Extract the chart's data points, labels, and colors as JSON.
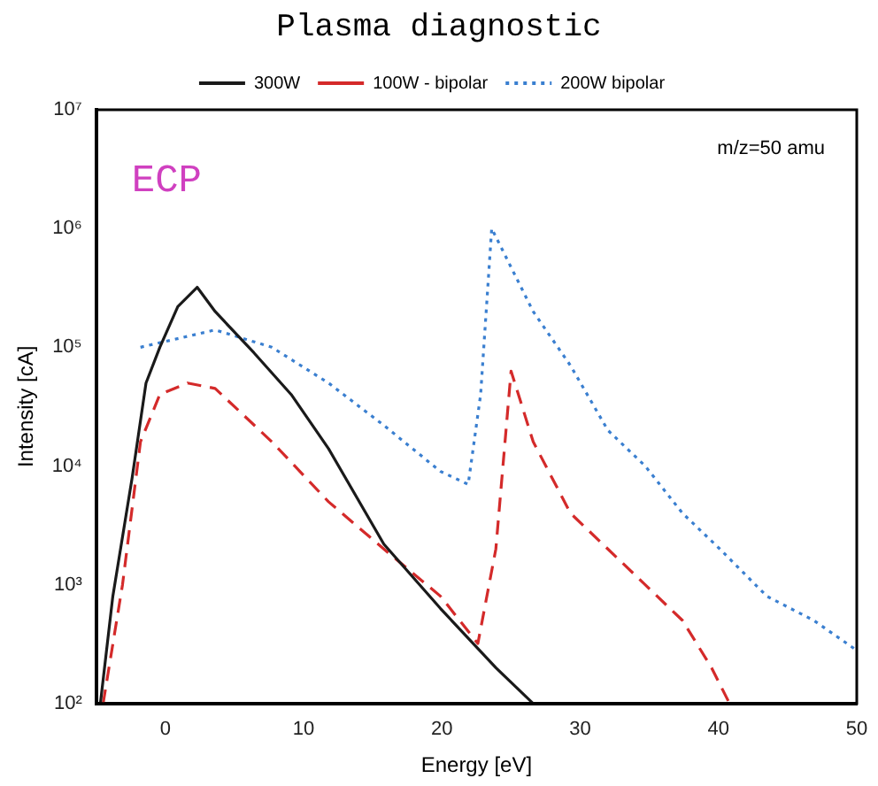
{
  "chart_data": {
    "type": "line",
    "title": "Plasma diagnostic",
    "xlabel": "Energy [eV]",
    "ylabel": "Intensity [cA]",
    "annotations": [
      "ECP",
      "m/z=50 amu"
    ],
    "xlim": [
      -5,
      50
    ],
    "xticks": [
      0,
      10,
      20,
      30,
      40,
      50
    ],
    "ylim": [
      100,
      10000000
    ],
    "yticks": [
      {
        "value": 100,
        "label": "10²"
      },
      {
        "value": 1000,
        "label": "10³"
      },
      {
        "value": 10000,
        "label": "10⁴"
      },
      {
        "value": 100000,
        "label": "10⁵"
      },
      {
        "value": 1000000,
        "label": "10⁶"
      },
      {
        "value": 10000000,
        "label": "10⁷"
      }
    ],
    "log": "y",
    "grid": false,
    "legend": "top",
    "marker": "none",
    "series": [
      {
        "name": "300W",
        "color": "#1a1a1a",
        "line_style": "solid",
        "x": [
          -4.7,
          -3.8,
          -2.4,
          -1.4,
          -0.4,
          0.9,
          2.3,
          3.6,
          6.4,
          9.1,
          11.8,
          15.8,
          19.9,
          23.9,
          26.6
        ],
        "values": [
          100,
          800,
          8000,
          50000,
          100000,
          220000,
          320000,
          200000,
          90000,
          40000,
          14000,
          2200,
          630,
          200,
          100
        ]
      },
      {
        "name": "100W - bipolar",
        "color": "#d42a2a",
        "line_style": "dashed",
        "x": [
          -4.5,
          -3.1,
          -1.8,
          -0.4,
          1.6,
          3.6,
          7.7,
          11.8,
          15.8,
          19.9,
          22.6,
          23.9,
          25,
          26.6,
          29.3,
          32,
          34.7,
          37.4,
          39.5,
          40.8
        ],
        "values": [
          100,
          1000,
          16000,
          40000,
          50000,
          45000,
          16000,
          5000,
          2000,
          800,
          320,
          2000,
          63000,
          16000,
          4000,
          2000,
          1000,
          500,
          200,
          100
        ]
      },
      {
        "name": "200W bipolar",
        "color": "#3a7fd0",
        "line_style": "dotted",
        "x": [
          -1.8,
          3.6,
          7.7,
          11.8,
          15.8,
          19.9,
          21.9,
          22.8,
          23.6,
          26.6,
          29.3,
          32,
          34.7,
          37.4,
          40.1,
          43.5,
          46.9,
          50
        ],
        "values": [
          100000,
          140000,
          100000,
          50000,
          22000,
          9000,
          7000,
          40000,
          1000000,
          200000,
          70000,
          20000,
          10000,
          4000,
          2000,
          800,
          500,
          280
        ]
      }
    ]
  }
}
